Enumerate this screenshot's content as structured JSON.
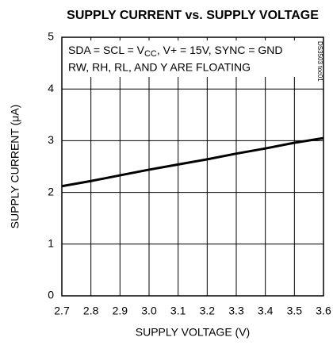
{
  "chart_data": {
    "type": "line",
    "title": "SUPPLY CURRENT vs. SUPPLY VOLTAGE",
    "x_label": "SUPPLY VOLTAGE (V)",
    "y_label": "SUPPLY CURRENT (μA)",
    "annotation_1": [
      "SDA = SCL = V",
      "CC",
      ", V+ = 15V, SYNC = GND"
    ],
    "annotation_2": "RW, RH, RL, AND Y ARE FLOATING",
    "figure_id": "DS3503 toc01",
    "x": [
      2.7,
      2.8,
      2.9,
      3.0,
      3.1,
      3.2,
      3.3,
      3.4,
      3.5,
      3.6
    ],
    "series": [
      {
        "name": "Supply current",
        "color": "#000000",
        "values": [
          2.12,
          2.22,
          2.33,
          2.44,
          2.54,
          2.64,
          2.75,
          2.85,
          2.96,
          3.05
        ]
      }
    ],
    "xlim": [
      2.7,
      3.6
    ],
    "xticks": [
      2.7,
      2.8,
      2.9,
      {
        "value": 3,
        "label": "3.0"
      },
      3.1,
      3.2,
      3.3,
      3.4,
      3.5,
      3.6
    ],
    "ylim": [
      0,
      5
    ],
    "yticks": [
      0,
      1,
      2,
      3,
      4,
      5
    ],
    "grid": true
  }
}
